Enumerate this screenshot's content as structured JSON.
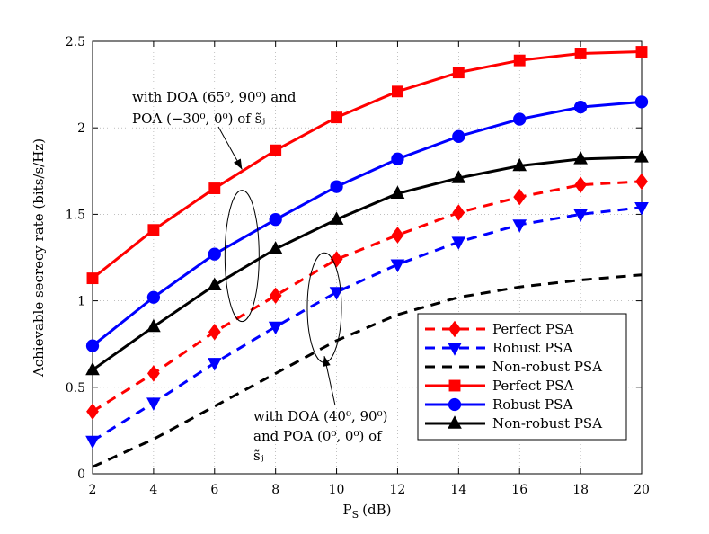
{
  "chart_data": {
    "type": "line",
    "xlabel": "P",
    "xlabel_sub": "S",
    "xlabel_unit": "(dB)",
    "ylabel": "Achievable secrecy rate (bits/s/Hz)",
    "xlim": [
      2,
      20
    ],
    "ylim": [
      0,
      2.5
    ],
    "xticks": [
      2,
      4,
      6,
      8,
      10,
      12,
      14,
      16,
      18,
      20
    ],
    "yticks": [
      0,
      0.5,
      1,
      1.5,
      2,
      2.5
    ],
    "xtick_labels": [
      "2",
      "4",
      "6",
      "8",
      "10",
      "12",
      "14",
      "16",
      "18",
      "20"
    ],
    "ytick_labels": [
      "0",
      "0.5",
      "1",
      "1.5",
      "2",
      "2.5"
    ],
    "legend_position": "lower-right",
    "series": [
      {
        "name": "Perfect PSA",
        "group": "DOA (40,90), POA (0,0)",
        "color": "#ff0000",
        "dash": "dashed",
        "marker": "diamond",
        "x": [
          2,
          4,
          6,
          8,
          10,
          12,
          14,
          16,
          18,
          20
        ],
        "values": [
          0.36,
          0.58,
          0.82,
          1.03,
          1.24,
          1.38,
          1.51,
          1.6,
          1.67,
          1.69
        ]
      },
      {
        "name": "Robust PSA",
        "group": "DOA (40,90), POA (0,0)",
        "color": "#0000ff",
        "dash": "dashed",
        "marker": "triangle-down",
        "x": [
          2,
          4,
          6,
          8,
          10,
          12,
          14,
          16,
          18,
          20
        ],
        "values": [
          0.19,
          0.41,
          0.64,
          0.85,
          1.05,
          1.21,
          1.34,
          1.44,
          1.5,
          1.54
        ]
      },
      {
        "name": "Non-robust PSA",
        "group": "DOA (40,90), POA (0,0)",
        "color": "#000000",
        "dash": "dashed",
        "marker": "none",
        "x": [
          2,
          4,
          6,
          8,
          10,
          12,
          14,
          16,
          18,
          20
        ],
        "values": [
          0.04,
          0.2,
          0.39,
          0.58,
          0.77,
          0.92,
          1.02,
          1.08,
          1.12,
          1.15
        ]
      },
      {
        "name": "Perfect PSA",
        "group": "DOA (65,90), POA (-30,0)",
        "color": "#ff0000",
        "dash": "solid",
        "marker": "square",
        "x": [
          2,
          4,
          6,
          8,
          10,
          12,
          14,
          16,
          18,
          20
        ],
        "values": [
          1.13,
          1.41,
          1.65,
          1.87,
          2.06,
          2.21,
          2.32,
          2.39,
          2.43,
          2.44
        ]
      },
      {
        "name": "Robust PSA",
        "group": "DOA (65,90), POA (-30,0)",
        "color": "#0000ff",
        "dash": "solid",
        "marker": "circle",
        "x": [
          2,
          4,
          6,
          8,
          10,
          12,
          14,
          16,
          18,
          20
        ],
        "values": [
          0.74,
          1.02,
          1.27,
          1.47,
          1.66,
          1.82,
          1.95,
          2.05,
          2.12,
          2.15
        ]
      },
      {
        "name": "Non-robust PSA",
        "group": "DOA (65,90), POA (-30,0)",
        "color": "#000000",
        "dash": "solid",
        "marker": "triangle-up",
        "x": [
          2,
          4,
          6,
          8,
          10,
          12,
          14,
          16,
          18,
          20
        ],
        "values": [
          0.6,
          0.85,
          1.09,
          1.3,
          1.47,
          1.62,
          1.71,
          1.78,
          1.82,
          1.83
        ]
      }
    ],
    "annotations": [
      {
        "lines": [
          "with DOA (65⁰, 90⁰) and",
          "POA (−30⁰, 0⁰) of s̃ⱼ"
        ],
        "anchor_x": 6.9,
        "anchor_y": 1.76
      },
      {
        "lines": [
          "with DOA (40⁰, 90⁰)",
          "and POA (0⁰, 0⁰) of",
          "s̃ⱼ"
        ],
        "anchor_x": 9.6,
        "anchor_y": 0.68
      }
    ]
  }
}
